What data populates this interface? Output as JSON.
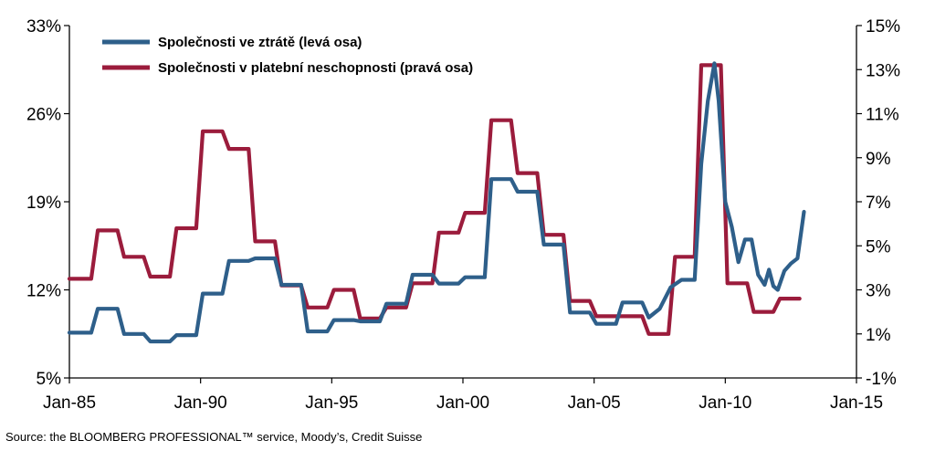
{
  "source": "Source: the BLOOMBERG PROFESSIONAL™ service, Moody’s, Credit Suisse",
  "chart_data": {
    "type": "line",
    "x_axis": {
      "type": "date",
      "range": [
        "1985-01",
        "2015-01"
      ],
      "ticks": [
        "1985-01",
        "1990-01",
        "1995-01",
        "2000-01",
        "2005-01",
        "2010-01",
        "2015-01"
      ],
      "tick_labels": [
        "Jan-85",
        "Jan-90",
        "Jan-95",
        "Jan-00",
        "Jan-05",
        "Jan-10",
        "Jan-15"
      ]
    },
    "y_left": {
      "range": [
        5,
        33
      ],
      "ticks": [
        5,
        12,
        19,
        26,
        33
      ],
      "tick_labels": [
        "5%",
        "12%",
        "19%",
        "26%",
        "33%"
      ]
    },
    "y_right": {
      "range": [
        -1,
        15
      ],
      "ticks": [
        -1,
        1,
        3,
        5,
        7,
        9,
        11,
        13,
        15
      ],
      "tick_labels": [
        "-1%",
        "1%",
        "3%",
        "5%",
        "7%",
        "9%",
        "11%",
        "13%",
        "15%"
      ]
    },
    "grid": false,
    "legend": "top-left",
    "series": [
      {
        "name": "Společnosti ve ztrátě (levá osa)",
        "axis": "left",
        "color": "#2e5f8a",
        "points": [
          [
            "1985-01",
            8.6
          ],
          [
            "1985-11",
            8.6
          ],
          [
            "1986-02",
            10.5
          ],
          [
            "1986-11",
            10.5
          ],
          [
            "1987-02",
            8.5
          ],
          [
            "1987-11",
            8.5
          ],
          [
            "1988-02",
            7.9
          ],
          [
            "1988-11",
            7.9
          ],
          [
            "1989-02",
            8.4
          ],
          [
            "1989-11",
            8.4
          ],
          [
            "1990-02",
            11.7
          ],
          [
            "1990-11",
            11.7
          ],
          [
            "1991-02",
            14.3
          ],
          [
            "1991-11",
            14.3
          ],
          [
            "1992-02",
            14.5
          ],
          [
            "1992-11",
            14.5
          ],
          [
            "1993-02",
            12.4
          ],
          [
            "1993-11",
            12.4
          ],
          [
            "1994-02",
            8.7
          ],
          [
            "1994-11",
            8.7
          ],
          [
            "1995-02",
            9.6
          ],
          [
            "1995-11",
            9.6
          ],
          [
            "1996-02",
            9.5
          ],
          [
            "1996-11",
            9.5
          ],
          [
            "1997-02",
            10.9
          ],
          [
            "1997-11",
            10.9
          ],
          [
            "1998-02",
            13.2
          ],
          [
            "1998-11",
            13.2
          ],
          [
            "1999-02",
            12.5
          ],
          [
            "1999-11",
            12.5
          ],
          [
            "2000-02",
            13
          ],
          [
            "2000-11",
            13
          ],
          [
            "2001-02",
            20.8
          ],
          [
            "2001-11",
            20.8
          ],
          [
            "2002-02",
            19.8
          ],
          [
            "2002-11",
            19.8
          ],
          [
            "2003-02",
            15.6
          ],
          [
            "2003-11",
            15.6
          ],
          [
            "2004-02",
            10.2
          ],
          [
            "2004-11",
            10.2
          ],
          [
            "2005-02",
            9.3
          ],
          [
            "2005-11",
            9.3
          ],
          [
            "2006-02",
            11
          ],
          [
            "2006-11",
            11
          ],
          [
            "2007-02",
            9.8
          ],
          [
            "2007-07",
            10.5
          ],
          [
            "2007-12",
            12.2
          ],
          [
            "2008-05",
            12.8
          ],
          [
            "2008-11",
            12.8
          ],
          [
            "2009-02",
            22
          ],
          [
            "2009-05",
            27
          ],
          [
            "2009-08",
            30
          ],
          [
            "2009-10",
            27
          ],
          [
            "2010-01",
            19
          ],
          [
            "2010-04",
            17
          ],
          [
            "2010-07",
            14.2
          ],
          [
            "2010-10",
            16
          ],
          [
            "2011-01",
            16
          ],
          [
            "2011-04",
            13.2
          ],
          [
            "2011-07",
            12.4
          ],
          [
            "2011-09",
            13.6
          ],
          [
            "2011-11",
            12.3
          ],
          [
            "2012-01",
            12
          ],
          [
            "2012-04",
            13.5
          ],
          [
            "2012-07",
            14.1
          ],
          [
            "2012-10",
            14.5
          ],
          [
            "2013-01",
            18.2
          ]
        ]
      },
      {
        "name": "Společnosti v platební neschopnosti (pravá osa)",
        "axis": "right",
        "color": "#9b1c3c",
        "points": [
          [
            "1985-01",
            3.5
          ],
          [
            "1985-11",
            3.5
          ],
          [
            "1986-02",
            5.7
          ],
          [
            "1986-11",
            5.7
          ],
          [
            "1987-02",
            4.5
          ],
          [
            "1987-11",
            4.5
          ],
          [
            "1988-02",
            3.6
          ],
          [
            "1988-11",
            3.6
          ],
          [
            "1989-02",
            5.8
          ],
          [
            "1989-11",
            5.8
          ],
          [
            "1990-02",
            10.2
          ],
          [
            "1990-11",
            10.2
          ],
          [
            "1991-02",
            9.4
          ],
          [
            "1991-11",
            9.4
          ],
          [
            "1992-02",
            5.2
          ],
          [
            "1992-11",
            5.2
          ],
          [
            "1993-02",
            3.2
          ],
          [
            "1993-11",
            3.2
          ],
          [
            "1994-02",
            2.2
          ],
          [
            "1994-11",
            2.2
          ],
          [
            "1995-02",
            3
          ],
          [
            "1995-11",
            3
          ],
          [
            "1996-02",
            1.7
          ],
          [
            "1996-11",
            1.7
          ],
          [
            "1997-02",
            2.2
          ],
          [
            "1997-11",
            2.2
          ],
          [
            "1998-02",
            3.3
          ],
          [
            "1998-11",
            3.3
          ],
          [
            "1999-02",
            5.6
          ],
          [
            "1999-11",
            5.6
          ],
          [
            "2000-02",
            6.5
          ],
          [
            "2000-11",
            6.5
          ],
          [
            "2001-02",
            10.7
          ],
          [
            "2001-11",
            10.7
          ],
          [
            "2002-02",
            8.3
          ],
          [
            "2002-11",
            8.3
          ],
          [
            "2003-02",
            5.5
          ],
          [
            "2003-11",
            5.5
          ],
          [
            "2004-02",
            2.5
          ],
          [
            "2004-11",
            2.5
          ],
          [
            "2005-02",
            1.8
          ],
          [
            "2005-11",
            1.8
          ],
          [
            "2006-02",
            1.8
          ],
          [
            "2006-11",
            1.8
          ],
          [
            "2007-02",
            1
          ],
          [
            "2007-11",
            1
          ],
          [
            "2008-02",
            4.5
          ],
          [
            "2008-11",
            4.5
          ],
          [
            "2009-02",
            13.2
          ],
          [
            "2009-11",
            13.2
          ],
          [
            "2010-02",
            3.3
          ],
          [
            "2010-11",
            3.3
          ],
          [
            "2011-02",
            2
          ],
          [
            "2011-11",
            2
          ],
          [
            "2012-02",
            2.6
          ],
          [
            "2012-11",
            2.6
          ]
        ]
      }
    ]
  }
}
